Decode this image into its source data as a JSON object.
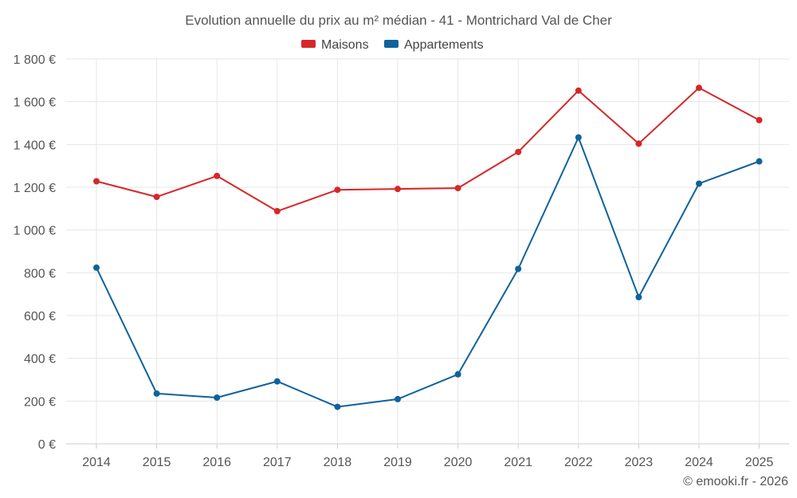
{
  "chart_data": {
    "type": "line",
    "title": "Evolution annuelle du prix au m² médian - 41 - Montrichard Val de Cher",
    "categories": [
      "2014",
      "2015",
      "2016",
      "2017",
      "2018",
      "2019",
      "2020",
      "2021",
      "2022",
      "2023",
      "2024",
      "2025"
    ],
    "series": [
      {
        "name": "Maisons",
        "color": "#d62728",
        "values": [
          1228,
          1155,
          1253,
          1088,
          1188,
          1192,
          1196,
          1365,
          1652,
          1404,
          1665,
          1514
        ]
      },
      {
        "name": "Appartements",
        "color": "#0f629b",
        "values": [
          824,
          235,
          216,
          292,
          173,
          209,
          325,
          818,
          1433,
          686,
          1217,
          1321
        ]
      }
    ],
    "y_ticks": [
      "0 €",
      "200 €",
      "400 €",
      "600 €",
      "800 €",
      "1 000 €",
      "1 200 €",
      "1 400 €",
      "1 600 €",
      "1 800 €"
    ],
    "y_tick_values": [
      0,
      200,
      400,
      600,
      800,
      1000,
      1200,
      1400,
      1600,
      1800
    ],
    "ylim": [
      0,
      1800
    ],
    "grid": true,
    "legend_position": "top-center",
    "xlabel": "",
    "ylabel": ""
  },
  "credit": "© emooki.fr - 2026"
}
